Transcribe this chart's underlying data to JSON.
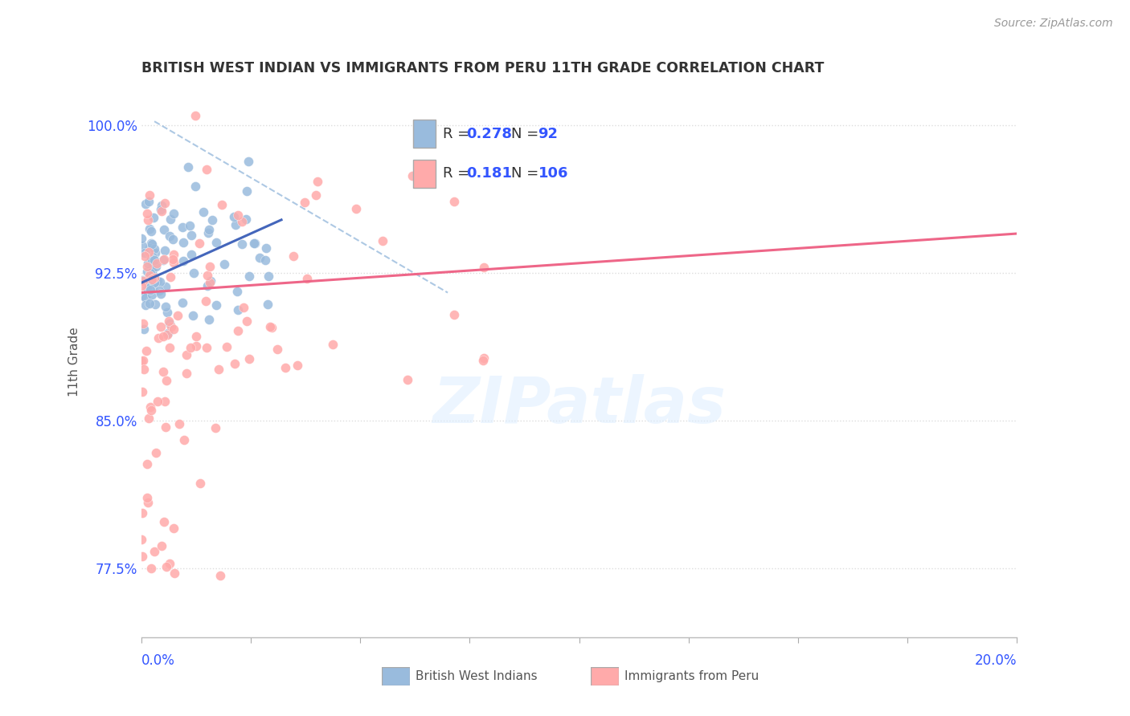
{
  "title": "BRITISH WEST INDIAN VS IMMIGRANTS FROM PERU 11TH GRADE CORRELATION CHART",
  "source_text": "Source: ZipAtlas.com",
  "ylabel": "11th Grade",
  "xlim": [
    0.0,
    20.0
  ],
  "ylim": [
    74.0,
    102.0
  ],
  "yticks": [
    77.5,
    85.0,
    92.5,
    100.0
  ],
  "ytick_labels": [
    "77.5%",
    "85.0%",
    "92.5%",
    "100.0%"
  ],
  "color_blue": "#99BBDD",
  "color_pink": "#FFAAAA",
  "color_blue_line": "#4466BB",
  "color_pink_line": "#EE6688",
  "color_dashed": "#99BBDD",
  "color_text_blue": "#3355FF",
  "watermark": "ZIPatlas",
  "background_color": "#FFFFFF",
  "grid_color": "#DDDDDD"
}
